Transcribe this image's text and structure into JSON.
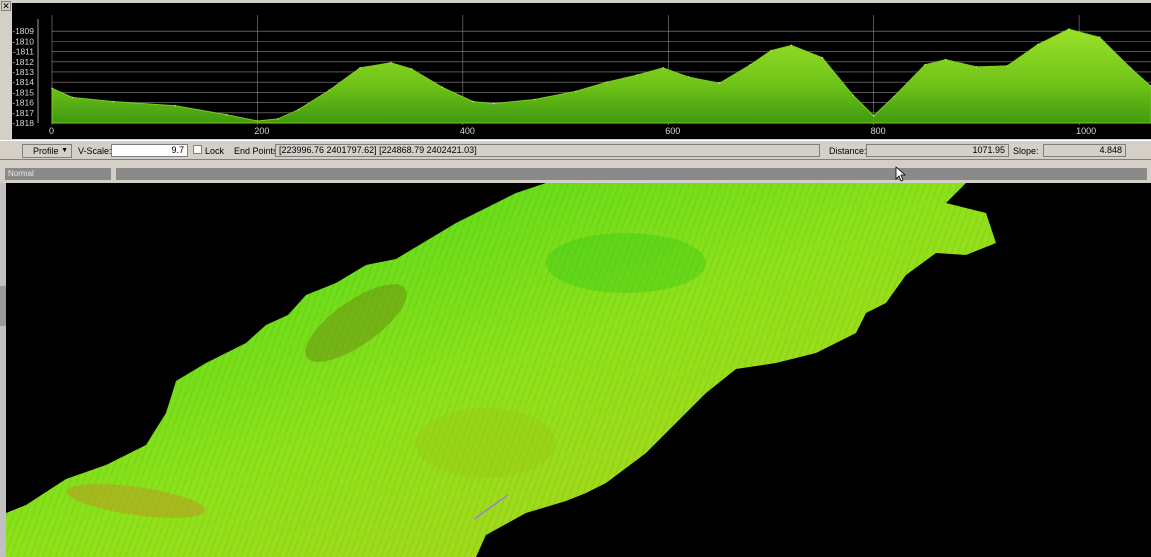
{
  "window": {
    "close_icon": "✕"
  },
  "chart_data": {
    "type": "area",
    "title": "",
    "xlabel": "",
    "ylabel": "",
    "x_ticks": [
      0,
      200,
      400,
      600,
      800,
      1000
    ],
    "y_ticks": [
      -1809,
      -1810,
      -1811,
      -1812,
      -1813,
      -1814,
      -1815,
      -1816,
      -1817,
      -1818
    ],
    "xlim": [
      0,
      1070
    ],
    "ylim": [
      -1818,
      -1808.2
    ],
    "grid": true,
    "fill_color": "#7ccd1e",
    "x": [
      0,
      20,
      60,
      120,
      170,
      200,
      220,
      240,
      270,
      300,
      330,
      350,
      380,
      410,
      430,
      470,
      510,
      540,
      570,
      595,
      620,
      650,
      680,
      700,
      720,
      750,
      780,
      800,
      820,
      850,
      870,
      900,
      930,
      960,
      990,
      1020,
      1050,
      1070
    ],
    "values": [
      -1814.6,
      -1815.5,
      -1815.9,
      -1816.3,
      -1817.2,
      -1817.8,
      -1817.6,
      -1816.7,
      -1814.8,
      -1812.6,
      -1812.1,
      -1812.7,
      -1814.5,
      -1815.9,
      -1816.1,
      -1815.7,
      -1814.9,
      -1814.0,
      -1813.3,
      -1812.6,
      -1813.5,
      -1814.1,
      -1812.3,
      -1810.9,
      -1810.4,
      -1811.6,
      -1815.3,
      -1817.3,
      -1815.4,
      -1812.3,
      -1811.8,
      -1812.5,
      -1812.4,
      -1810.3,
      -1808.8,
      -1809.6,
      -1812.6,
      -1814.4
    ]
  },
  "toolbar": {
    "profile_label": "Profile",
    "vscale_label": "V-Scale:",
    "vscale_value": "9.7",
    "lock_label": "Lock",
    "endpoints_label": "End Points:",
    "endpoints_value": "[223996.76 2401797.62] [224868.79 2402421.03]",
    "distance_label": "Distance:",
    "distance_value": "1071.95",
    "slope_label": "Slope:",
    "slope_value": "4.848"
  },
  "status": {
    "mode": "Normal"
  },
  "map": {
    "terrain_colors": [
      "#3fd61a",
      "#8ee21a",
      "#b7d01c"
    ]
  }
}
